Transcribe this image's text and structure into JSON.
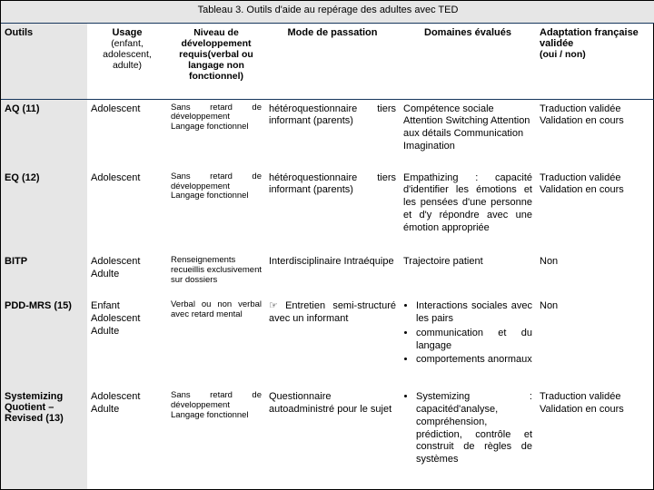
{
  "caption": "Tableau 3. Outils d'aide au repérage des adultes avec TED",
  "headers": {
    "outils": "Outils",
    "usage": "Usage",
    "usage_sub": "(enfant, adolescent, adulte)",
    "niveau": "Niveau de développement requis(verbal ou langage non fonctionnel)",
    "mode": "Mode de passation",
    "domaines": "Domaines évalués",
    "adaptation": "Adaptation française validée",
    "adaptation_sub": "(oui / non)"
  },
  "rows": [
    {
      "tool": "AQ (11)",
      "usage": "Adolescent",
      "niveau": "Sans retard de développement Langage fonctionnel",
      "mode": "hétéroquestionnaire tiers informant (parents)",
      "domaines_text": "Compétence sociale Attention Switching Attention aux détails Communication Imagination",
      "adaptation": "Traduction validée Validation en cours"
    },
    {
      "tool": "EQ (12)",
      "usage": "Adolescent",
      "niveau": "Sans retard de développement Langage fonctionnel",
      "mode": "hétéroquestionnaire tiers informant (parents)",
      "domaines_text": "Empathizing : capacité d'identifier les émotions et les pensées d'une personne et d'y répondre avec une émotion appropriée",
      "adaptation": "Traduction validée Validation en cours"
    },
    {
      "tool": "BITP",
      "usage": "Adolescent Adulte",
      "niveau": "Renseignements recueillis exclusivement sur dossiers",
      "mode": "Interdisciplinaire Intraéquipe",
      "domaines_text": "Trajectoire patient",
      "adaptation": "Non"
    },
    {
      "tool": "PDD-MRS (15)",
      "usage": "Enfant Adolescent Adulte",
      "niveau": "Verbal ou non verbal avec retard mental",
      "mode": "☞ Entretien semi-structuré avec un informant",
      "domaines_bullets": [
        "Interactions sociales avec les pairs",
        "communication et du langage",
        "comportements anormaux"
      ],
      "adaptation": "Non"
    },
    {
      "tool": "Systemizing Quotient – Revised (13)",
      "usage": "Adolescent Adulte",
      "niveau": "Sans retard de développement Langage fonctionnel",
      "mode": "Questionnaire autoadministré pour le sujet",
      "domaines_bullets": [
        "Systemizing : capacitéd'analyse, compréhension, prédiction, contrôle et construit de règles de systèmes"
      ],
      "adaptation": "Traduction validée Validation en cours"
    }
  ],
  "colors": {
    "header_border": "#16365c",
    "tool_bg": "#e6e6e6",
    "text": "#000000",
    "background": "#ffffff"
  }
}
